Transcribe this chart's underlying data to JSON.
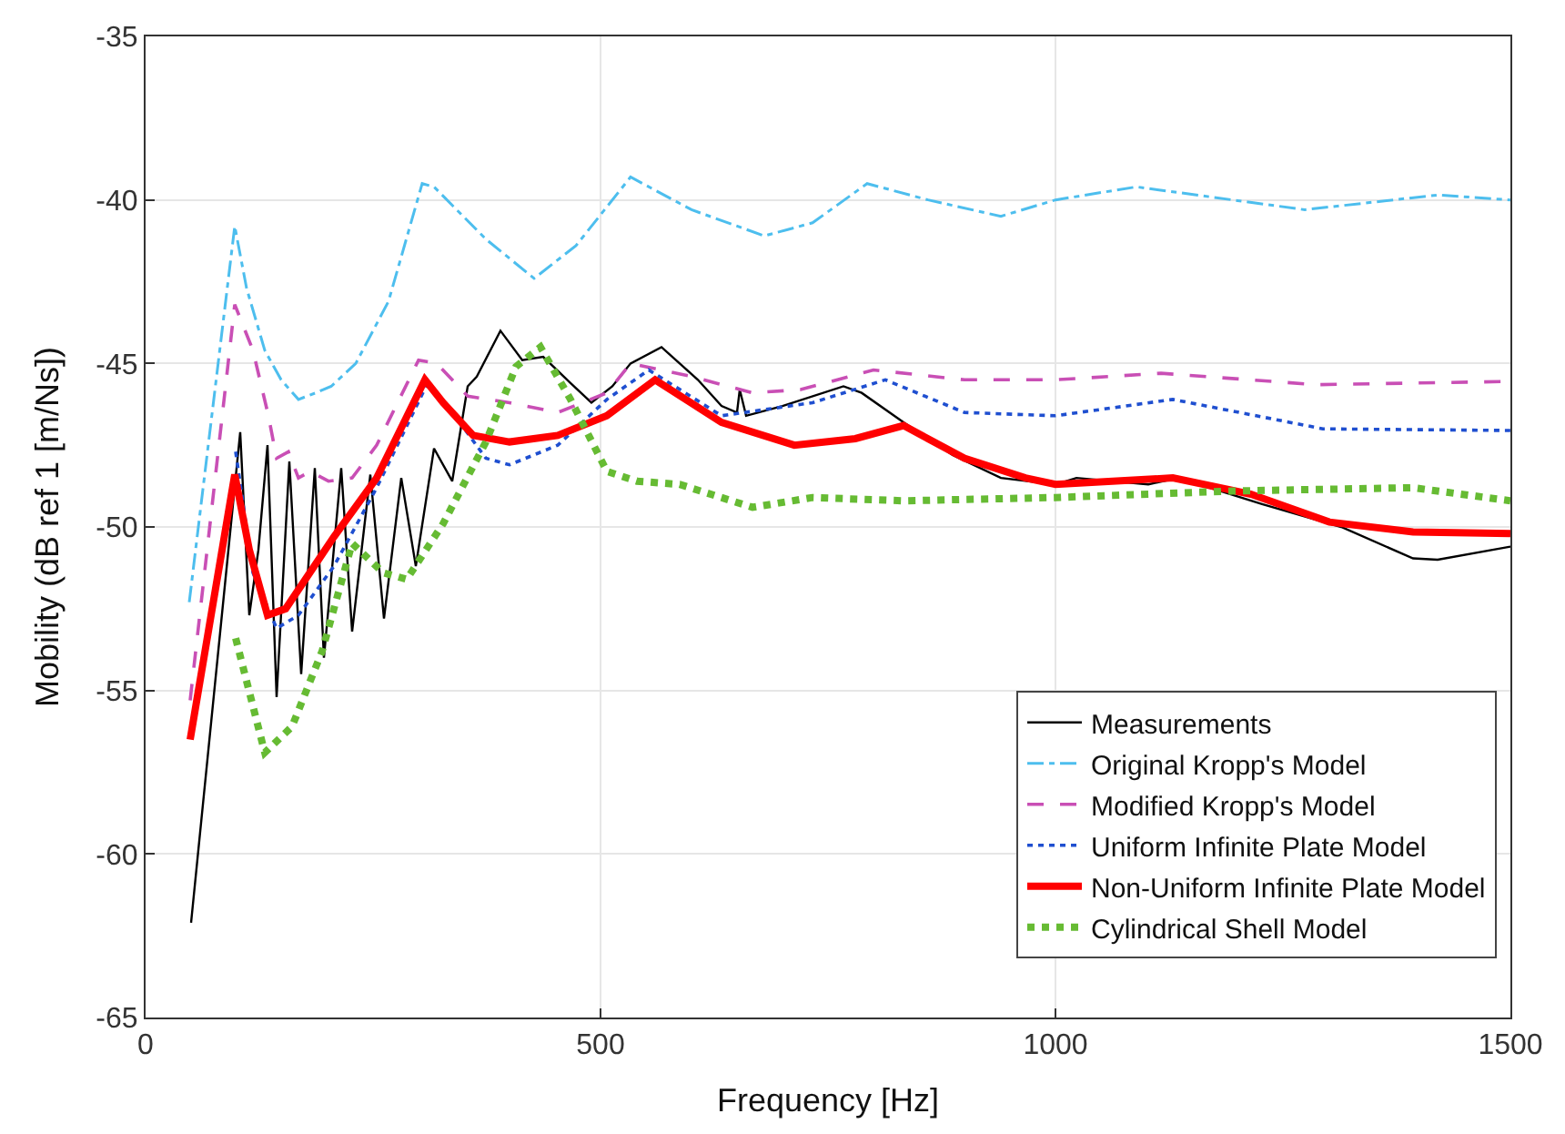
{
  "chart_data": {
    "type": "line",
    "xlabel": "Frequency [Hz]",
    "ylabel": "Mobility (dB ref 1 [m/Ns])",
    "xlim": [
      0,
      1500
    ],
    "ylim": [
      -65,
      -35
    ],
    "xticks": [
      0,
      500,
      1000,
      1500
    ],
    "yticks": [
      -65,
      -60,
      -55,
      -50,
      -45,
      -40,
      -35
    ],
    "grid": true,
    "legend": "bottom right",
    "marker": "none",
    "series": [
      {
        "name": "Measurements",
        "color": "#000000",
        "line_style": "solid",
        "x": [
          50,
          104,
          114,
          124,
          134,
          144,
          158,
          171,
          186,
          196,
          215,
          227,
          247,
          262,
          281,
          297,
          317,
          337,
          354,
          364,
          390,
          414,
          437,
          467,
          490,
          513,
          533,
          567,
          607,
          633,
          650,
          653,
          660,
          700,
          767,
          787,
          833,
          887,
          940,
          1000,
          1023,
          1102,
          1135,
          1227,
          1314,
          1393,
          1420,
          1500
        ],
        "values": [
          -62.1,
          -47.1,
          -52.7,
          -50.7,
          -47.5,
          -55.2,
          -48.0,
          -54.5,
          -48.2,
          -54.0,
          -48.2,
          -53.2,
          -48.4,
          -52.8,
          -48.5,
          -51.2,
          -47.6,
          -48.6,
          -45.7,
          -45.4,
          -44.0,
          -44.9,
          -44.8,
          -45.6,
          -46.2,
          -45.7,
          -45.0,
          -44.5,
          -45.5,
          -46.3,
          -46.5,
          -45.8,
          -46.6,
          -46.3,
          -45.7,
          -45.9,
          -46.8,
          -47.8,
          -48.5,
          -48.7,
          -48.5,
          -48.7,
          -48.5,
          -49.3,
          -50.0,
          -50.96,
          -51.0,
          -50.6
        ]
      },
      {
        "name": "Original Kropp's Model",
        "color": "#4dbeee",
        "line_style": "dashdot",
        "x": [
          48,
          98,
          111,
          131,
          149,
          168,
          187,
          204,
          231,
          267,
          304,
          317,
          374,
          427,
          473,
          533,
          600,
          680,
          733,
          793,
          860,
          940,
          1000,
          1089,
          1274,
          1420,
          1500
        ],
        "values": [
          -52.3,
          -40.8,
          -42.7,
          -44.6,
          -45.5,
          -46.1,
          -45.9,
          -45.7,
          -45.0,
          -43.1,
          -39.5,
          -39.6,
          -41.2,
          -42.4,
          -41.4,
          -39.3,
          -40.3,
          -41.1,
          -40.7,
          -39.5,
          -40.0,
          -40.5,
          -40.0,
          -39.6,
          -40.3,
          -39.85,
          -40.0
        ]
      },
      {
        "name": "Modified Kropp's Model",
        "color": "#c94fb5",
        "line_style": "dashed",
        "x": [
          49,
          98,
          118,
          135,
          144,
          157,
          168,
          181,
          201,
          227,
          254,
          300,
          320,
          354,
          400,
          453,
          507,
          533,
          600,
          667,
          720,
          800,
          900,
          1000,
          1116,
          1287,
          1500
        ],
        "values": [
          -55.3,
          -43.2,
          -44.6,
          -46.6,
          -47.9,
          -47.7,
          -48.5,
          -48.3,
          -48.6,
          -48.5,
          -47.5,
          -44.9,
          -45.0,
          -46.0,
          -46.2,
          -46.5,
          -45.9,
          -45.0,
          -45.4,
          -45.9,
          -45.8,
          -45.2,
          -45.5,
          -45.5,
          -45.3,
          -45.65,
          -45.55
        ]
      },
      {
        "name": "Uniform Infinite Plate Model",
        "color": "#1f4fd0",
        "line_style": "dotted",
        "x": [
          99,
          118,
          144,
          168,
          207,
          254,
          310,
          340,
          374,
          400,
          453,
          507,
          553,
          633,
          733,
          813,
          900,
          1000,
          1129,
          1294,
          1500
        ],
        "values": [
          -47.7,
          -51.4,
          -53.1,
          -52.7,
          -51.2,
          -48.8,
          -45.6,
          -46.6,
          -47.9,
          -48.1,
          -47.5,
          -46.1,
          -45.2,
          -46.6,
          -46.2,
          -45.5,
          -46.5,
          -46.6,
          -46.1,
          -47.0,
          -47.05
        ]
      },
      {
        "name": "Non-Uniform Infinite Plate Model",
        "color": "#ff0000",
        "line_style": "solid",
        "x": [
          49,
          98,
          114,
          134,
          154,
          207,
          254,
          307,
          327,
          360,
          400,
          453,
          507,
          560,
          633,
          713,
          780,
          833,
          900,
          967,
          1000,
          1129,
          1215,
          1301,
          1393,
          1500
        ],
        "values": [
          -56.5,
          -48.4,
          -50.7,
          -52.7,
          -52.5,
          -50.3,
          -48.5,
          -45.5,
          -46.2,
          -47.2,
          -47.4,
          -47.2,
          -46.6,
          -45.5,
          -46.8,
          -47.5,
          -47.3,
          -46.9,
          -47.9,
          -48.5,
          -48.7,
          -48.5,
          -49.0,
          -49.85,
          -50.15,
          -50.2
        ]
      },
      {
        "name": "Cylindrical Shell Model",
        "color": "#66bb33",
        "line_style": "dotted",
        "x": [
          99,
          131,
          161,
          194,
          227,
          261,
          287,
          327,
          374,
          407,
          434,
          467,
          507,
          540,
          587,
          667,
          733,
          833,
          1000,
          1195,
          1393,
          1500
        ],
        "values": [
          -53.4,
          -56.9,
          -56.1,
          -53.8,
          -50.5,
          -51.4,
          -51.6,
          -49.9,
          -47.4,
          -45.1,
          -44.5,
          -46.1,
          -48.3,
          -48.6,
          -48.7,
          -49.4,
          -49.1,
          -49.2,
          -49.1,
          -48.9,
          -48.8,
          -49.2
        ]
      }
    ]
  }
}
